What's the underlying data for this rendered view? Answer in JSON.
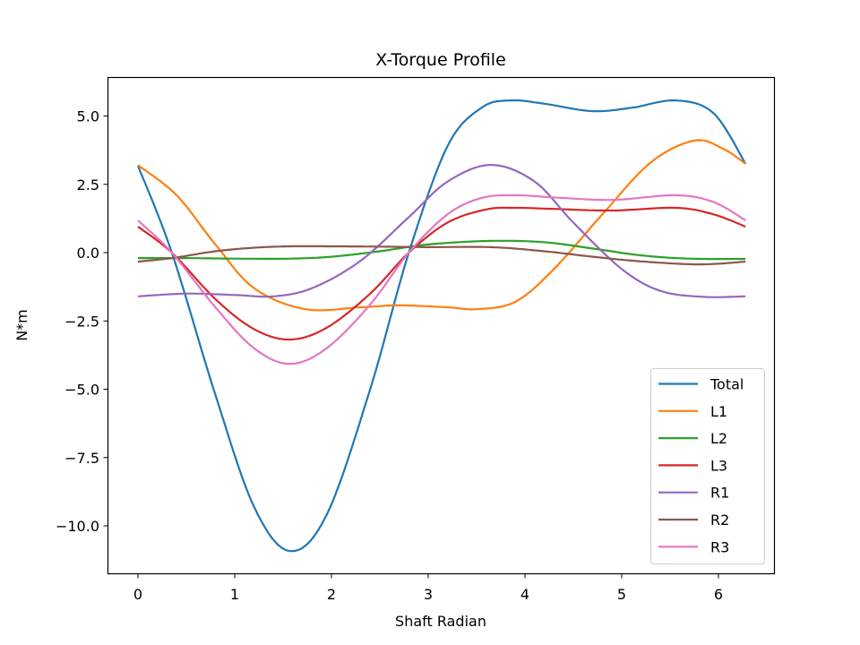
{
  "chart_data": {
    "type": "line",
    "title": "X-Torque Profile",
    "xlabel": "Shaft Radian",
    "ylabel": "N*m",
    "xlim": [
      -0.31,
      6.59
    ],
    "ylim": [
      -11.9,
      6.5
    ],
    "xticks": [
      0,
      1,
      2,
      3,
      4,
      5,
      6
    ],
    "xtick_labels": [
      "0",
      "1",
      "2",
      "3",
      "4",
      "5",
      "6"
    ],
    "yticks": [
      5.0,
      2.5,
      0.0,
      -2.5,
      -5.0,
      -7.5,
      -10.0
    ],
    "ytick_labels": [
      "5.0",
      "2.5",
      "0.0",
      "−2.5",
      "−5.0",
      "−7.5",
      "−10.0"
    ],
    "grid": false,
    "legend_position": "lower right",
    "series": [
      {
        "name": "Total",
        "color": "#1f77b4",
        "x": [
          0,
          0.35,
          0.8,
          1.2,
          1.57,
          1.95,
          2.4,
          2.8,
          3.2,
          3.55,
          3.85,
          4.2,
          4.69,
          5.1,
          5.56,
          5.95,
          6.28
        ],
        "y": [
          3.18,
          0.0,
          -5.2,
          -9.3,
          -10.92,
          -9.6,
          -5.0,
          0.0,
          3.9,
          5.3,
          5.57,
          5.45,
          5.18,
          5.3,
          5.57,
          5.1,
          3.25
        ]
      },
      {
        "name": "L1",
        "color": "#ff7f0e",
        "x": [
          0,
          0.4,
          0.8,
          1.2,
          1.73,
          2.3,
          2.69,
          3.2,
          3.5,
          3.9,
          4.3,
          4.8,
          5.3,
          5.75,
          6.05,
          6.28
        ],
        "y": [
          3.2,
          2.1,
          0.3,
          -1.3,
          -2.07,
          -2.0,
          -1.93,
          -2.0,
          -2.07,
          -1.8,
          -0.6,
          1.4,
          3.3,
          4.1,
          3.8,
          3.25
        ]
      },
      {
        "name": "L2",
        "color": "#2ca02c",
        "x": [
          0,
          0.5,
          1.0,
          1.57,
          2.0,
          2.5,
          3.0,
          3.65,
          4.2,
          4.7,
          5.2,
          5.7,
          6.28
        ],
        "y": [
          -0.2,
          -0.2,
          -0.22,
          -0.22,
          -0.15,
          0.05,
          0.3,
          0.43,
          0.38,
          0.15,
          -0.1,
          -0.22,
          -0.23
        ]
      },
      {
        "name": "L3",
        "color": "#d62728",
        "x": [
          0,
          0.35,
          0.8,
          1.2,
          1.57,
          1.95,
          2.4,
          2.8,
          3.2,
          3.6,
          3.9,
          4.3,
          4.9,
          5.56,
          5.95,
          6.28
        ],
        "y": [
          0.95,
          0.0,
          -1.7,
          -2.8,
          -3.18,
          -2.75,
          -1.5,
          0.0,
          1.1,
          1.58,
          1.64,
          1.6,
          1.54,
          1.64,
          1.4,
          0.95
        ]
      },
      {
        "name": "R1",
        "color": "#9467bd",
        "x": [
          0,
          0.5,
          1.0,
          1.4,
          1.8,
          2.3,
          2.8,
          3.2,
          3.65,
          4.1,
          4.5,
          5.0,
          5.4,
          5.85,
          6.28
        ],
        "y": [
          -1.6,
          -1.5,
          -1.55,
          -1.6,
          -1.3,
          -0.3,
          1.3,
          2.6,
          3.21,
          2.6,
          1.1,
          -0.6,
          -1.4,
          -1.62,
          -1.6
        ]
      },
      {
        "name": "R2",
        "color": "#8c564b",
        "x": [
          0,
          0.35,
          0.8,
          1.2,
          1.57,
          2.0,
          2.5,
          3.0,
          3.65,
          4.2,
          4.7,
          5.2,
          5.8,
          6.28
        ],
        "y": [
          -0.33,
          -0.2,
          0.05,
          0.18,
          0.23,
          0.23,
          0.22,
          0.2,
          0.2,
          0.05,
          -0.15,
          -0.32,
          -0.43,
          -0.33
        ]
      },
      {
        "name": "R3",
        "color": "#e377c2",
        "x": [
          0,
          0.35,
          0.8,
          1.2,
          1.57,
          1.95,
          2.4,
          2.8,
          3.2,
          3.55,
          3.9,
          4.3,
          4.9,
          5.56,
          5.95,
          6.28
        ],
        "y": [
          1.18,
          0.0,
          -2.0,
          -3.5,
          -4.07,
          -3.5,
          -1.9,
          0.0,
          1.4,
          2.0,
          2.1,
          2.02,
          1.93,
          2.1,
          1.85,
          1.18
        ]
      }
    ]
  }
}
